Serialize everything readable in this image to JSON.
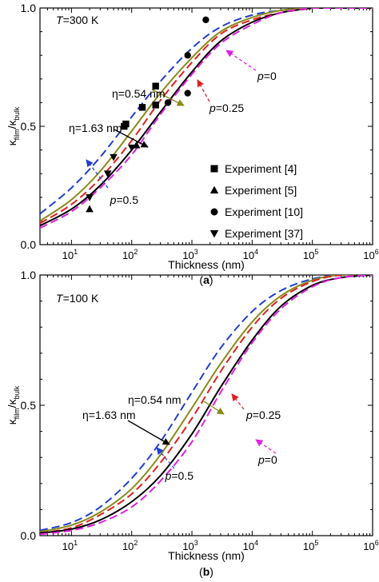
{
  "chart_data": [
    {
      "type": "line",
      "panel_label": "(a)",
      "title": "",
      "condition": {
        "prefix": "T",
        "suffix": "=300 K"
      },
      "xlabel": "Thickness (nm)",
      "ylabel": {
        "base": "κ",
        "sub1": "film",
        "sep": "/κ",
        "sub2": "bulk"
      },
      "x_scale": "log",
      "xlim": [
        3,
        1000000
      ],
      "ylim": [
        0,
        1
      ],
      "x_ticks": [
        {
          "value": 10,
          "exp": "1"
        },
        {
          "value": 100,
          "exp": "2"
        },
        {
          "value": 1000,
          "exp": "3"
        },
        {
          "value": 10000,
          "exp": "4"
        },
        {
          "value": 100000,
          "exp": "5"
        },
        {
          "value": 1000000,
          "exp": "6"
        }
      ],
      "x_tick_base": "10",
      "y_ticks": [
        {
          "value": 0,
          "label": "0.0"
        },
        {
          "value": 0.5,
          "label": "0.5"
        },
        {
          "value": 1,
          "label": "1.0"
        }
      ],
      "series": [
        {
          "color": "#1f3fd0",
          "dash": "dashed",
          "x": [
            3,
            10,
            30,
            100,
            300,
            1000,
            3000,
            10000,
            30000,
            100000
          ],
          "y": [
            0.13,
            0.24,
            0.37,
            0.54,
            0.69,
            0.83,
            0.92,
            0.97,
            0.99,
            1.0
          ]
        },
        {
          "color": "#8a8a1a",
          "dash": "solid",
          "x": [
            3,
            10,
            30,
            100,
            300,
            1000,
            3000,
            10000,
            30000,
            100000
          ],
          "y": [
            0.1,
            0.19,
            0.31,
            0.48,
            0.64,
            0.79,
            0.9,
            0.96,
            0.99,
            1.0
          ]
        },
        {
          "color": "#e02020",
          "dash": "dashed",
          "x": [
            3,
            10,
            30,
            100,
            300,
            1000,
            3000,
            10000,
            30000,
            100000
          ],
          "y": [
            0.09,
            0.17,
            0.28,
            0.44,
            0.61,
            0.77,
            0.89,
            0.95,
            0.98,
            1.0
          ]
        },
        {
          "color": "#000000",
          "dash": "solid",
          "x": [
            3,
            10,
            30,
            100,
            300,
            1000,
            3000,
            10000,
            30000,
            100000
          ],
          "y": [
            0.08,
            0.15,
            0.25,
            0.4,
            0.56,
            0.73,
            0.86,
            0.94,
            0.98,
            1.0
          ]
        },
        {
          "color": "#e020e0",
          "dash": "dashed",
          "x": [
            3,
            10,
            30,
            100,
            300,
            1000,
            3000,
            10000,
            30000,
            100000
          ],
          "y": [
            0.07,
            0.14,
            0.24,
            0.38,
            0.55,
            0.72,
            0.85,
            0.93,
            0.98,
            1.0
          ]
        }
      ],
      "scatter": [
        {
          "name": "Experiment [4]",
          "marker": "square",
          "x": [
            75,
            80,
            150,
            250,
            250
          ],
          "y": [
            0.5,
            0.51,
            0.58,
            0.59,
            0.67
          ]
        },
        {
          "name": "Experiment [5]",
          "marker": "triangle-up",
          "x": [
            20,
            120
          ],
          "y": [
            0.15,
            0.42
          ]
        },
        {
          "name": "Experiment [10]",
          "marker": "circle",
          "x": [
            400,
            850,
            850,
            1700
          ],
          "y": [
            0.6,
            0.64,
            0.8,
            0.95
          ]
        },
        {
          "name": "Experiment [37]",
          "marker": "triangle-down",
          "x": [
            20,
            40,
            50,
            100
          ],
          "y": [
            0.2,
            0.3,
            0.37,
            0.41
          ]
        }
      ],
      "annotations": [
        {
          "label": "η=0.54 nm",
          "color": "#8a8a1a"
        },
        {
          "label": "η=1.63 nm",
          "color": "#000000"
        },
        {
          "label_prefix": "p",
          "label_suffix": "=0",
          "color": "#e020e0"
        },
        {
          "label_prefix": "p",
          "label_suffix": "=0.25",
          "color": "#e02020"
        },
        {
          "label_prefix": "p",
          "label_suffix": "=0.5",
          "color": "#1f3fd0"
        }
      ],
      "legend_position": "bottom-right",
      "grid": false
    },
    {
      "type": "line",
      "panel_label": "(b)",
      "title": "",
      "condition": {
        "prefix": "T",
        "suffix": "=100 K"
      },
      "xlabel": "Thickness (nm)",
      "ylabel": {
        "base": "κ",
        "sub1": "film",
        "sep": "/κ",
        "sub2": "bulk"
      },
      "x_scale": "log",
      "xlim": [
        3,
        1000000
      ],
      "ylim": [
        0,
        1
      ],
      "x_ticks": [
        {
          "value": 10,
          "exp": "1"
        },
        {
          "value": 100,
          "exp": "2"
        },
        {
          "value": 1000,
          "exp": "3"
        },
        {
          "value": 10000,
          "exp": "4"
        },
        {
          "value": 100000,
          "exp": "5"
        },
        {
          "value": 1000000,
          "exp": "6"
        }
      ],
      "x_tick_base": "10",
      "y_ticks": [
        {
          "value": 0,
          "label": "0.0"
        },
        {
          "value": 0.5,
          "label": "0.5"
        },
        {
          "value": 1,
          "label": "1.0"
        }
      ],
      "series": [
        {
          "color": "#1f3fd0",
          "dash": "dashed",
          "x": [
            3,
            10,
            30,
            100,
            300,
            1000,
            3000,
            10000,
            30000,
            100000,
            300000,
            1000000
          ],
          "y": [
            0.02,
            0.05,
            0.11,
            0.22,
            0.36,
            0.55,
            0.72,
            0.86,
            0.94,
            0.985,
            1.0,
            1.0
          ]
        },
        {
          "color": "#8a8a1a",
          "dash": "solid",
          "x": [
            3,
            10,
            30,
            100,
            300,
            1000,
            3000,
            10000,
            30000,
            100000,
            300000,
            1000000
          ],
          "y": [
            0.015,
            0.04,
            0.09,
            0.18,
            0.31,
            0.49,
            0.66,
            0.82,
            0.92,
            0.98,
            1.0,
            1.0
          ]
        },
        {
          "color": "#e02020",
          "dash": "dashed",
          "x": [
            3,
            10,
            30,
            100,
            300,
            1000,
            3000,
            10000,
            30000,
            100000,
            300000,
            1000000
          ],
          "y": [
            0.01,
            0.03,
            0.08,
            0.16,
            0.28,
            0.45,
            0.63,
            0.8,
            0.91,
            0.975,
            1.0,
            1.0
          ]
        },
        {
          "color": "#000000",
          "dash": "solid",
          "x": [
            3,
            10,
            30,
            100,
            300,
            1000,
            3000,
            10000,
            30000,
            100000,
            300000,
            1000000
          ],
          "y": [
            0.01,
            0.025,
            0.06,
            0.13,
            0.23,
            0.39,
            0.57,
            0.75,
            0.88,
            0.96,
            0.99,
            1.0
          ]
        },
        {
          "color": "#e020e0",
          "dash": "dashed",
          "x": [
            3,
            10,
            30,
            100,
            300,
            1000,
            3000,
            10000,
            30000,
            100000,
            300000,
            1000000
          ],
          "y": [
            0.005,
            0.02,
            0.05,
            0.11,
            0.21,
            0.36,
            0.55,
            0.74,
            0.87,
            0.955,
            0.99,
            1.0
          ]
        }
      ],
      "scatter": [],
      "annotations": [
        {
          "label": "η=0.54 nm",
          "color": "#8a8a1a"
        },
        {
          "label": "η=1.63 nm",
          "color": "#000000"
        },
        {
          "label_prefix": "p",
          "label_suffix": "=0",
          "color": "#e020e0"
        },
        {
          "label_prefix": "p",
          "label_suffix": "=0.25",
          "color": "#e02020"
        },
        {
          "label_prefix": "p",
          "label_suffix": "=0.5",
          "color": "#1f3fd0"
        }
      ],
      "legend_position": "none",
      "grid": false
    }
  ]
}
